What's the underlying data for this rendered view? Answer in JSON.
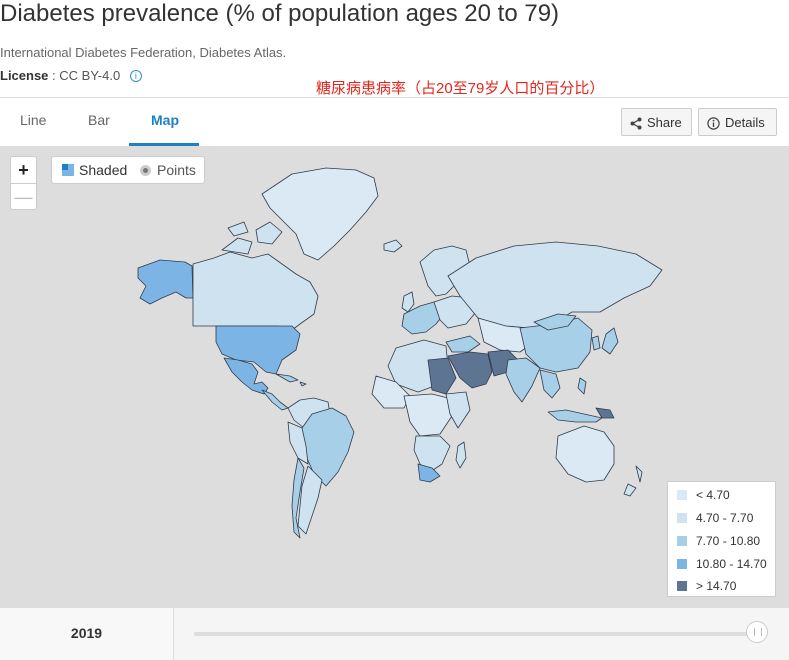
{
  "title": "Diabetes prevalence (% of population ages 20 to 79)",
  "source": "International Diabetes Federation, Diabetes Atlas.",
  "license": {
    "label": "License",
    "value": ": CC BY-4.0"
  },
  "annotation": "糖尿病患病率（占20至79岁人口的百分比）",
  "tabs": [
    "Line",
    "Bar",
    "Map"
  ],
  "active_tab": "Map",
  "buttons": {
    "share": "Share",
    "details": "Details"
  },
  "map_controls": {
    "zoom_in": "+",
    "zoom_out": "—",
    "shaded": "Shaded",
    "points": "Points"
  },
  "legend": [
    {
      "label": "< 4.70",
      "color": "#dbe9f4"
    },
    {
      "label": "4.70 - 7.70",
      "color": "#cfe2f0"
    },
    {
      "label": "7.70 - 10.80",
      "color": "#a8cfe8"
    },
    {
      "label": "10.80 - 14.70",
      "color": "#7cb5e5"
    },
    {
      "label": "> 14.70",
      "color": "#5d7593"
    }
  ],
  "timeline": {
    "year": "2019"
  }
}
